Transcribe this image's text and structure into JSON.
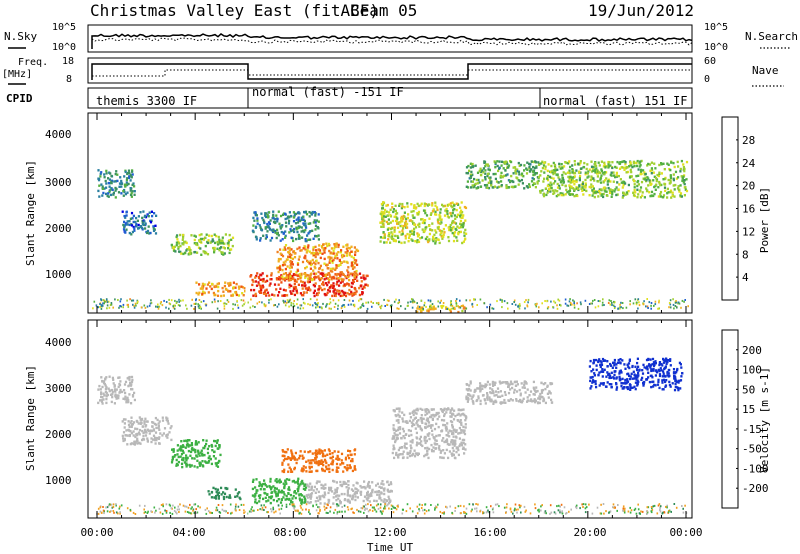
{
  "header": {
    "title": "Christmas Valley East (fitACF)",
    "beam": "Beam 05",
    "date": "19/Jun/2012"
  },
  "top_panels": {
    "nsky_label": "N.Sky",
    "nsky_ticks": [
      "10^5",
      "10^0"
    ],
    "nsearch_label": "N.Search",
    "freq_label": "Freq.",
    "freq_unit": "[MHz]",
    "freq_ticks": [
      "18",
      "8"
    ],
    "nave_ticks": [
      "60",
      "0"
    ],
    "nave_label": "Nave",
    "cpid_label": "CPID",
    "cpid_segments": [
      "themis 3300 IF",
      "normal (fast) -151 IF",
      "normal (fast) 151 IF"
    ]
  },
  "x_axis": {
    "label": "Time UT",
    "ticks": [
      "00:00",
      "04:00",
      "08:00",
      "12:00",
      "16:00",
      "20:00",
      "00:00"
    ]
  },
  "power_panel": {
    "ylabel": "Slant Range [km]",
    "yticks": [
      "4000",
      "3000",
      "2000",
      "1000"
    ],
    "colorbar_label": "Power [dB]",
    "colorbar_ticks": [
      "28",
      "24",
      "20",
      "16",
      "12",
      "8",
      "4"
    ],
    "colors": [
      "#0000e0",
      "#1f5fd0",
      "#2a7fa0",
      "#3a9060",
      "#54b040",
      "#a0d030",
      "#e0e020",
      "#f0b020",
      "#f08020",
      "#f05010",
      "#e01010"
    ]
  },
  "velocity_panel": {
    "ylabel": "Slant Range [km]",
    "yticks": [
      "4000",
      "3000",
      "2000",
      "1000"
    ],
    "colorbar_label": "Velocity [m s-1]",
    "colorbar_ticks": [
      "200",
      "100",
      "50",
      "15",
      "-15",
      "-50",
      "-100",
      "-200"
    ],
    "colors": [
      "#1030d0",
      "#2050e0",
      "#2e8b57",
      "#3cb043",
      "#b8b8b8",
      "#f0a020",
      "#f07010",
      "#e02020"
    ]
  },
  "chart_data": [
    {
      "type": "heatmap",
      "title": "Power",
      "xlabel": "Time UT",
      "ylabel": "Slant Range [km]",
      "xlim_hours": [
        0,
        24
      ],
      "ylim_km": [
        180,
        4500
      ],
      "colorbar": {
        "label": "Power [dB]",
        "range": [
          0,
          30
        ]
      },
      "regions": [
        {
          "t": [
            0.0,
            1.5
          ],
          "r": [
            2700,
            3300
          ],
          "v": 8
        },
        {
          "t": [
            1.0,
            2.4
          ],
          "r": [
            1900,
            2400
          ],
          "v": 6
        },
        {
          "t": [
            3.0,
            5.5
          ],
          "r": [
            1450,
            1900
          ],
          "v": 14
        },
        {
          "t": [
            4.0,
            6.0
          ],
          "r": [
            550,
            850
          ],
          "v": 22
        },
        {
          "t": [
            6.2,
            11.0
          ],
          "r": [
            550,
            1050
          ],
          "v": 27
        },
        {
          "t": [
            7.3,
            10.6
          ],
          "r": [
            900,
            1700
          ],
          "v": 22
        },
        {
          "t": [
            6.3,
            9.0
          ],
          "r": [
            1750,
            2400
          ],
          "v": 8
        },
        {
          "t": [
            11.5,
            15.0
          ],
          "r": [
            1700,
            2600
          ],
          "v": 16
        },
        {
          "t": [
            13.0,
            15.0
          ],
          "r": [
            200,
            350
          ],
          "v": 20
        },
        {
          "t": [
            15.0,
            18.0
          ],
          "r": [
            2900,
            3500
          ],
          "v": 12
        },
        {
          "t": [
            18.0,
            24.0
          ],
          "r": [
            2700,
            3500
          ],
          "v": 14
        }
      ]
    },
    {
      "type": "heatmap",
      "title": "Velocity",
      "xlabel": "Time UT",
      "ylabel": "Slant Range [km]",
      "xlim_hours": [
        0,
        24
      ],
      "ylim_km": [
        180,
        4500
      ],
      "colorbar": {
        "label": "Velocity [m s-1]",
        "range": [
          -200,
          200
        ]
      },
      "regions": [
        {
          "t": [
            0.0,
            1.5
          ],
          "r": [
            2700,
            3300
          ],
          "v": 0
        },
        {
          "t": [
            1.0,
            3.0
          ],
          "r": [
            1800,
            2400
          ],
          "v": 0
        },
        {
          "t": [
            3.0,
            5.0
          ],
          "r": [
            1300,
            1900
          ],
          "v": 20
        },
        {
          "t": [
            4.5,
            5.8
          ],
          "r": [
            600,
            850
          ],
          "v": 60
        },
        {
          "t": [
            6.3,
            8.5
          ],
          "r": [
            500,
            1050
          ],
          "v": 30
        },
        {
          "t": [
            8.5,
            12.0
          ],
          "r": [
            500,
            1000
          ],
          "v": 0
        },
        {
          "t": [
            7.5,
            10.5
          ],
          "r": [
            1200,
            1700
          ],
          "v": -60
        },
        {
          "t": [
            12.0,
            15.0
          ],
          "r": [
            1500,
            2600
          ],
          "v": 0
        },
        {
          "t": [
            15.0,
            18.5
          ],
          "r": [
            2700,
            3200
          ],
          "v": 0
        },
        {
          "t": [
            20.0,
            23.8
          ],
          "r": [
            3000,
            3700
          ],
          "v": 200
        }
      ]
    }
  ]
}
